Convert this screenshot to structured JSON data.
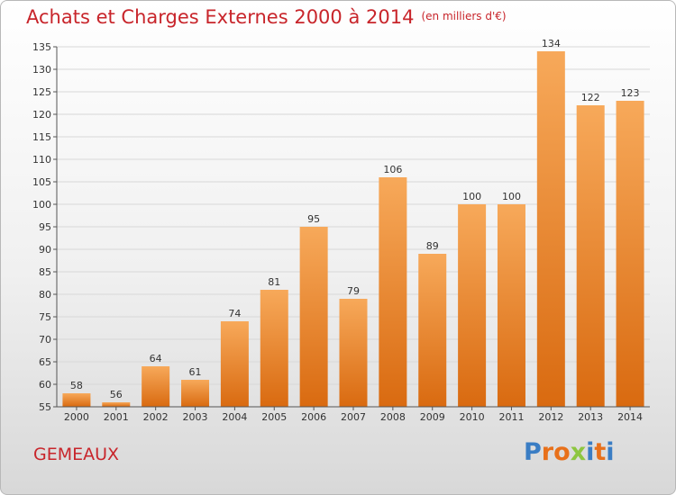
{
  "title": "Achats et Charges Externes 2000 à 2014",
  "unit": "(en milliers d'€)",
  "commune": "GEMEAUX",
  "logo": {
    "letters": [
      "P",
      "r",
      "o",
      "x",
      "i",
      "t",
      "i"
    ],
    "colors": [
      "#3a7dc4",
      "#e8701a",
      "#e8701a",
      "#8dc63f",
      "#3a7dc4",
      "#e8701a",
      "#3a7dc4"
    ]
  },
  "colors": {
    "bar_top": "#f7a95a",
    "bar_bottom": "#d96a10",
    "grid": "#d8d8d8",
    "title": "#c8252b"
  },
  "chart_data": {
    "type": "bar",
    "title": "Achats et Charges Externes 2000 à 2014",
    "categories": [
      "2000",
      "2001",
      "2002",
      "2003",
      "2004",
      "2005",
      "2006",
      "2007",
      "2008",
      "2009",
      "2010",
      "2011",
      "2012",
      "2013",
      "2014"
    ],
    "values": [
      58,
      56,
      64,
      61,
      74,
      81,
      95,
      79,
      106,
      89,
      100,
      100,
      134,
      122,
      123
    ],
    "ylim": [
      55,
      135
    ],
    "yticks": [
      55,
      60,
      65,
      70,
      75,
      80,
      85,
      90,
      95,
      100,
      105,
      110,
      115,
      120,
      125,
      130,
      135
    ],
    "grid": true,
    "xlabel": "",
    "ylabel": ""
  }
}
